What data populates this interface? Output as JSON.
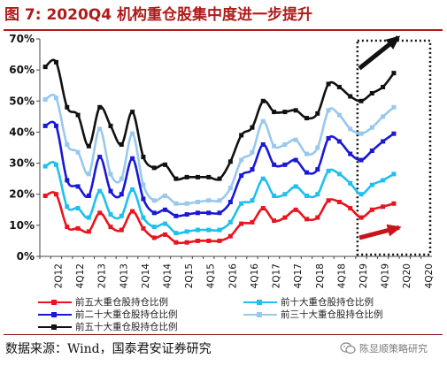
{
  "title": "图 7:  2020Q4 机构重仓股集中度进一步提升",
  "source": "数据来源：Wind，国泰君安证券研究",
  "watermark": "陈显顺策略研究",
  "watermark_icon": "wechat-icon",
  "chart_data": {
    "type": "line",
    "x": [
      "1Q12",
      "2Q12",
      "3Q12",
      "4Q12",
      "1Q13",
      "2Q13",
      "3Q13",
      "4Q13",
      "1Q14",
      "2Q14",
      "3Q14",
      "4Q14",
      "1Q15",
      "2Q15",
      "3Q15",
      "4Q15",
      "1Q16",
      "2Q16",
      "3Q16",
      "4Q16",
      "1Q17",
      "2Q17",
      "3Q17",
      "4Q17",
      "1Q18",
      "2Q18",
      "3Q18",
      "4Q18",
      "1Q19",
      "2Q19",
      "3Q19",
      "4Q19",
      "1Q20",
      "2Q20",
      "3Q20",
      "4Q20"
    ],
    "x_tick_labels": [
      "2Q12",
      "4Q12",
      "2Q13",
      "4Q13",
      "2Q14",
      "4Q14",
      "2Q15",
      "4Q15",
      "2Q16",
      "4Q16",
      "2Q17",
      "4Q17",
      "2Q18",
      "4Q18",
      "2Q19",
      "4Q19",
      "2Q20",
      "4Q20"
    ],
    "y_ticks": [
      "0%",
      "10%",
      "20%",
      "30%",
      "40%",
      "50%",
      "60%",
      "70%"
    ],
    "ylim": [
      0,
      70
    ],
    "series": [
      {
        "name": "前五大重仓股持仓比例",
        "color": "#e8141e",
        "values": [
          19.5,
          20,
          9.5,
          9,
          8,
          14,
          9.5,
          8.5,
          14.5,
          9,
          6,
          7,
          4.5,
          4.5,
          5,
          5,
          5,
          6.5,
          10.5,
          11,
          15.5,
          11.5,
          12.5,
          15,
          12,
          12.5,
          18,
          17.5,
          15.5,
          12.5,
          15,
          16,
          17,
          null,
          null,
          null
        ]
      },
      {
        "name": "前十大重仓股持仓比例",
        "color": "#1ec0ee",
        "values": [
          29,
          29.5,
          16,
          15.5,
          12.5,
          21,
          13.5,
          13,
          21.5,
          12.5,
          9.5,
          10.5,
          7.5,
          8,
          8.5,
          8.5,
          8.5,
          11,
          17,
          18,
          25,
          19.5,
          20,
          22.5,
          19.5,
          20,
          27.5,
          26.5,
          23.5,
          20,
          23,
          24.5,
          26.5,
          null,
          null,
          null
        ]
      },
      {
        "name": "前二十大重仓股持仓比例",
        "color": "#1818d6",
        "values": [
          42,
          42,
          24.5,
          22.5,
          19.5,
          32,
          21,
          20,
          31.5,
          18.5,
          14,
          15,
          13,
          13.5,
          14,
          14,
          14,
          17.5,
          26,
          28,
          36,
          29.5,
          29.5,
          31,
          27,
          28,
          38,
          37,
          33,
          31,
          34,
          37,
          39.5,
          null,
          null,
          null
        ]
      },
      {
        "name": "前三十大重仓股持仓比例",
        "color": "#99c8ee",
        "values": [
          50.5,
          51,
          36,
          33.5,
          26.5,
          41,
          26.5,
          25,
          39.5,
          23,
          18,
          19.5,
          17,
          17,
          17.5,
          18,
          18,
          22,
          31,
          33.5,
          43.5,
          35.5,
          36,
          37.5,
          33,
          35,
          47,
          45.5,
          41,
          39.5,
          41.5,
          45,
          48,
          null,
          null,
          null
        ]
      },
      {
        "name": "前五十大重仓股持仓比例",
        "color": "#111111",
        "values": [
          61,
          62.5,
          48,
          45.5,
          35.5,
          48,
          42,
          36,
          46.5,
          32,
          28.5,
          29.5,
          25,
          25.5,
          25.5,
          25.5,
          25,
          30.5,
          39,
          41.5,
          50,
          46.5,
          46.5,
          47,
          44.5,
          46,
          55.5,
          54.5,
          51.5,
          50,
          52.5,
          54.5,
          59,
          null,
          null,
          null
        ]
      }
    ],
    "annotations": [
      "dotted-highlight-box-2020",
      "black-arrow-up",
      "red-arrow-up"
    ]
  }
}
